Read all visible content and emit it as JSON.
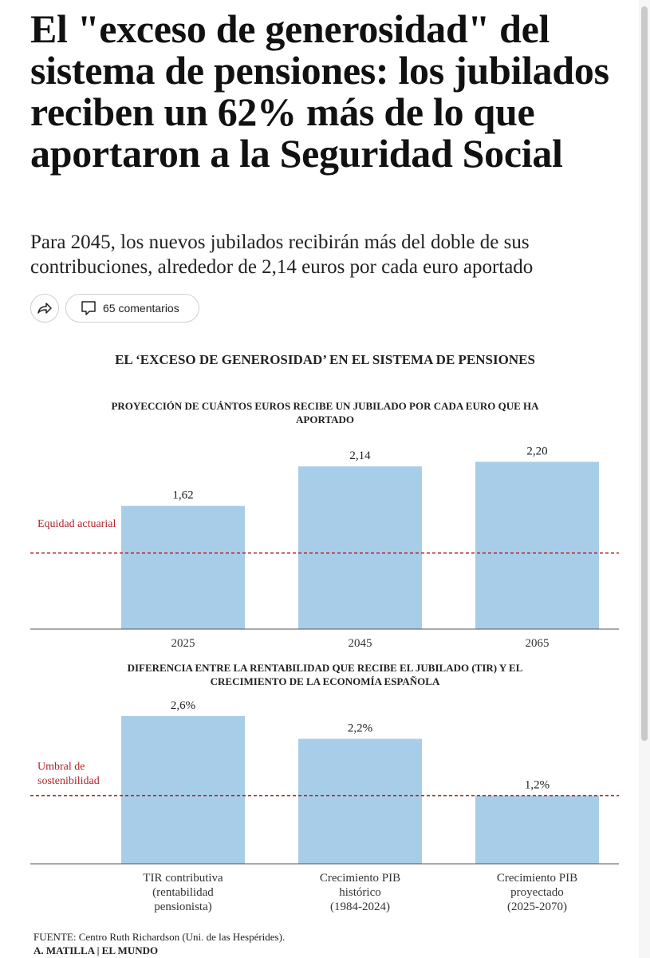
{
  "article": {
    "headline": "El \"exceso de generosidad\" del sistema de pensiones: los jubilados reciben un 62% más de lo que aportaron a la Seguridad Social",
    "subheadline": "Para 2045, los nuevos jubilados recibirán más del doble de sus contribuciones, alrededor de 2,14 euros por cada euro aportado",
    "share_icon": "share-arrow-icon",
    "comments_icon": "speech-bubble-icon",
    "comments_label": "65 comentarios"
  },
  "infographic": {
    "title": "EL ‘EXCESO DE GENEROSIDAD’ EN EL SISTEMA DE PENSIONES",
    "source": "FUENTE: Centro Ruth Richardson (Uni. de las Hespérides).",
    "credit": "A. MATILLA | EL MUNDO"
  },
  "colors": {
    "bar": "#a8cde9",
    "reference_line": "#b3242a",
    "axis": "#555555"
  },
  "chart_data": [
    {
      "type": "bar",
      "title": "PROYECCIÓN DE CUÁNTOS EUROS RECIBE UN JUBILADO POR CADA EURO QUE HA APORTADO",
      "categories": [
        "2025",
        "2045",
        "2065"
      ],
      "values": [
        1.62,
        2.14,
        2.2
      ],
      "value_labels": [
        "1,62",
        "2,14",
        "2,20"
      ],
      "reference_value": 1.0,
      "reference_label": "Equidad actuarial",
      "ylim": [
        0,
        2.3
      ]
    },
    {
      "type": "bar",
      "title": "DIFERENCIA ENTRE LA RENTABILIDAD QUE RECIBE EL JUBILADO (TIR) Y EL CRECIMIENTO DE LA ECONOMÍA ESPAÑOLA",
      "categories": [
        "TIR contributiva (rentabilidad pensionista)",
        "Crecimiento PIB histórico (1984-2024)",
        "Crecimiento PIB proyectado (2025-2070)"
      ],
      "values": [
        2.6,
        2.2,
        1.2
      ],
      "value_labels": [
        "2,6%",
        "2,2%",
        "1,2%"
      ],
      "reference_value": 1.2,
      "reference_label": "Umbral de sostenibilidad",
      "ylim": [
        0,
        2.6
      ]
    }
  ]
}
